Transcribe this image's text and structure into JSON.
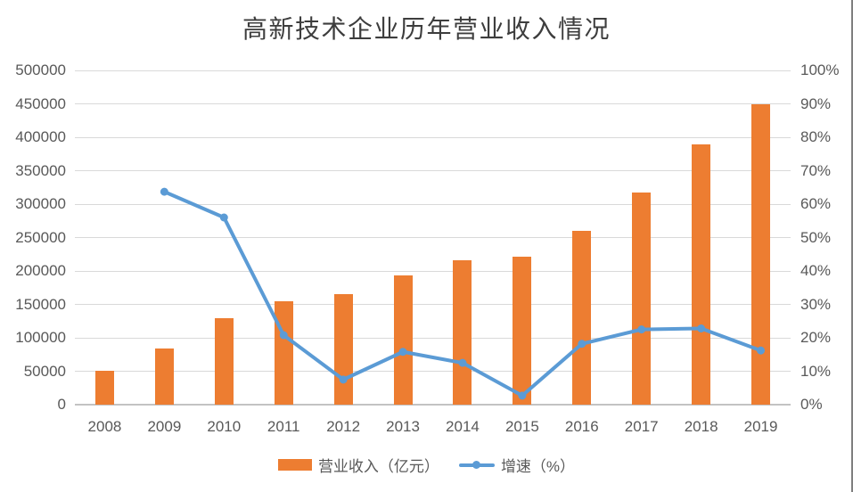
{
  "chart_data": {
    "type": "combo",
    "title": "高新技术企业历年营业收入情况",
    "categories": [
      "2008",
      "2009",
      "2010",
      "2011",
      "2012",
      "2013",
      "2014",
      "2015",
      "2016",
      "2017",
      "2018",
      "2019"
    ],
    "series": [
      {
        "name": "营业收入（亿元）",
        "type": "bar",
        "axis": "left",
        "color": "#ED7D31",
        "values": [
          51000,
          83500,
          130000,
          155000,
          166000,
          193000,
          216000,
          222000,
          260000,
          318000,
          389000,
          450000
        ]
      },
      {
        "name": "增速（%）",
        "type": "line",
        "axis": "right",
        "color": "#5B9BD5",
        "values": [
          null,
          63.7,
          56,
          20.8,
          7.5,
          15.8,
          12.5,
          2.7,
          18.2,
          22.5,
          22.8,
          16.2
        ]
      }
    ],
    "left_axis": {
      "min": 0,
      "max": 500000,
      "step": 50000,
      "tick_labels": [
        "0",
        "50000",
        "100000",
        "150000",
        "200000",
        "250000",
        "300000",
        "350000",
        "400000",
        "450000",
        "500000"
      ]
    },
    "right_axis": {
      "min": 0,
      "max": 100,
      "step": 10,
      "tick_labels": [
        "0%",
        "10%",
        "20%",
        "30%",
        "40%",
        "50%",
        "60%",
        "70%",
        "80%",
        "90%",
        "100%"
      ]
    },
    "grid": true,
    "legend_position": "bottom"
  },
  "style": {
    "background": "#ffffff",
    "gridline_color": "#d9d9d9",
    "axis_line_color": "#c3c3c3",
    "label_color": "#595959",
    "title_color": "#3d3d3d",
    "right_border_color": "#7f7f7f"
  }
}
